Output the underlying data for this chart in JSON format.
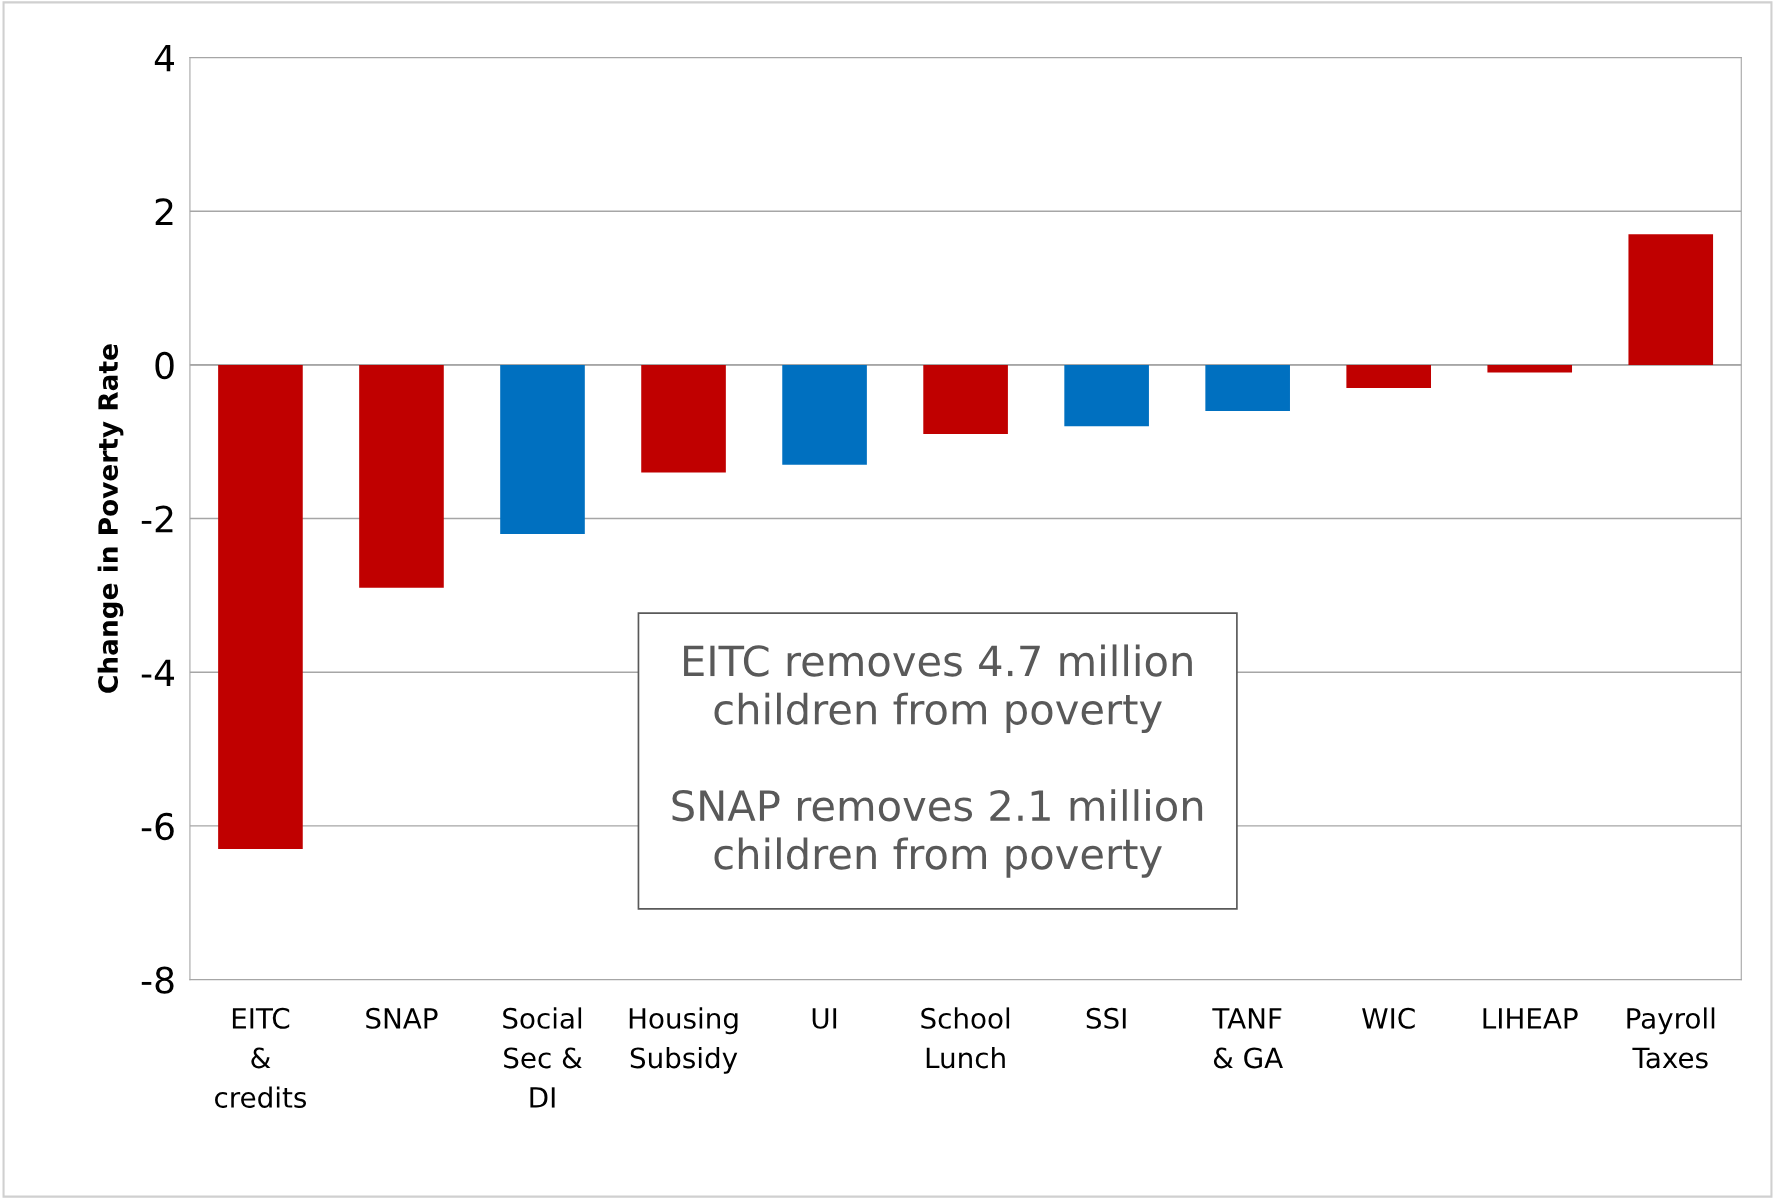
{
  "chart_data": {
    "type": "bar",
    "ylabel": "Change in Poverty Rate",
    "categories": [
      "EITC\n&\ncredits",
      "SNAP",
      "Social\nSec &\nDI",
      "Housing\nSubsidy",
      "UI",
      "School\nLunch",
      "SSI",
      "TANF\n& GA",
      "WIC",
      "LIHEAP",
      "Payroll\nTaxes"
    ],
    "values": [
      -6.3,
      -2.9,
      -2.2,
      -1.4,
      -1.3,
      -0.9,
      -0.8,
      -0.6,
      -0.3,
      -0.1,
      1.7
    ],
    "colors": [
      "#c00000",
      "#c00000",
      "#0070c0",
      "#c00000",
      "#0070c0",
      "#c00000",
      "#0070c0",
      "#0070c0",
      "#c00000",
      "#c00000",
      "#c00000"
    ],
    "ylim": [
      -8,
      4
    ],
    "yticks": [
      -8,
      -6,
      -4,
      -2,
      0,
      2,
      4
    ],
    "grid": "y",
    "legend": false,
    "annotations": [
      "EITC removes 4.7 million\nchildren from poverty\n\nSNAP removes 2.1 million\nchildren from poverty"
    ]
  }
}
